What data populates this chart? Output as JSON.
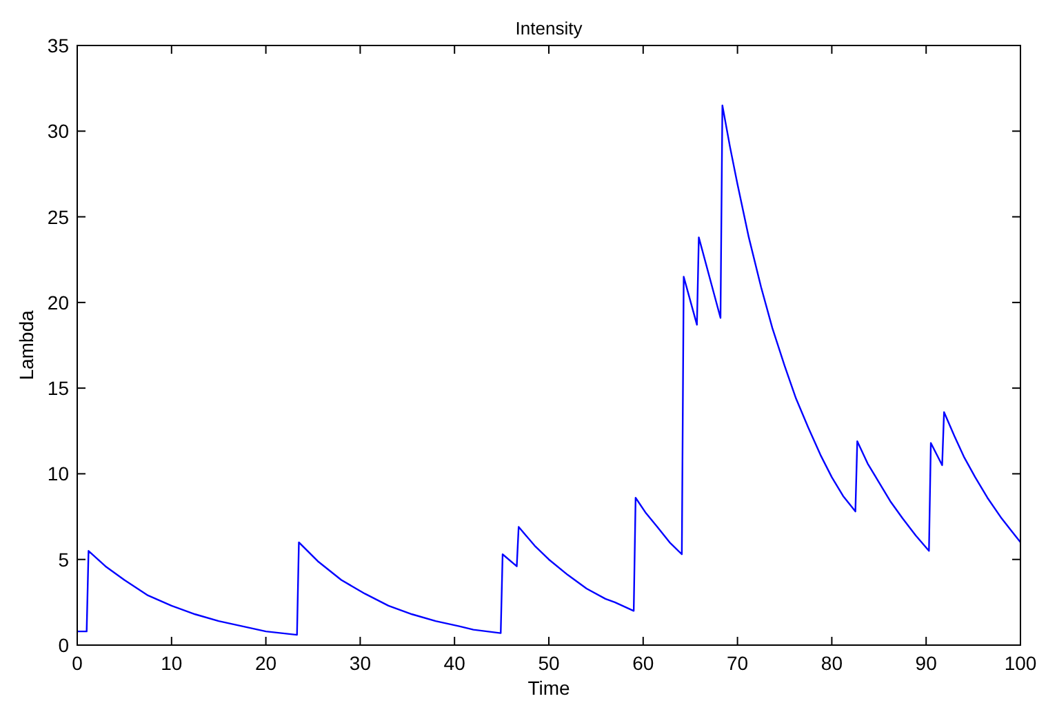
{
  "chart_data": {
    "type": "line",
    "title": "Intensity",
    "xlabel": "Time",
    "ylabel": "Lambda",
    "x": [
      0,
      1.0,
      1.2,
      3,
      5,
      7.5,
      10,
      12.5,
      15,
      17.5,
      20,
      23.3,
      23.5,
      25.5,
      28,
      30.5,
      33,
      35.5,
      38,
      40.5,
      42,
      44.9,
      45.1,
      46.6,
      46.8,
      48.5,
      50,
      52,
      54,
      56,
      57,
      59.0,
      59.2,
      60.3,
      61.5,
      62.8,
      64.1,
      64.3,
      65.7,
      65.9,
      68.2,
      68.4,
      69.2,
      70,
      71.2,
      72.5,
      73.7,
      75,
      76.2,
      77.5,
      78.8,
      80,
      81.2,
      82.5,
      82.7,
      83.8,
      85,
      86.2,
      87.5,
      88.9,
      90.3,
      90.5,
      91.7,
      91.9,
      93,
      94,
      95.2,
      96.5,
      98,
      99,
      100
    ],
    "series": [
      {
        "color": "#0000ff",
        "values": [
          0.8,
          0.8,
          5.5,
          4.6,
          3.8,
          2.9,
          2.3,
          1.8,
          1.4,
          1.1,
          0.8,
          0.6,
          6.0,
          4.9,
          3.8,
          3.0,
          2.3,
          1.8,
          1.4,
          1.1,
          0.9,
          0.7,
          5.3,
          4.6,
          6.9,
          5.8,
          5.0,
          4.1,
          3.3,
          2.7,
          2.5,
          2.0,
          8.6,
          7.7,
          6.9,
          6.0,
          5.3,
          21.5,
          18.7,
          23.8,
          19.1,
          31.5,
          29.1,
          26.9,
          23.8,
          20.9,
          18.5,
          16.3,
          14.4,
          12.7,
          11.1,
          9.8,
          8.7,
          7.8,
          11.9,
          10.6,
          9.5,
          8.4,
          7.4,
          6.4,
          5.5,
          11.8,
          10.5,
          13.6,
          12.2,
          11.0,
          9.8,
          8.6,
          7.4,
          6.7,
          6.0
        ]
      }
    ],
    "xlim": [
      0,
      100
    ],
    "xticks": [
      0,
      10,
      20,
      30,
      40,
      50,
      60,
      70,
      80,
      90,
      100
    ],
    "ylim": [
      0,
      35
    ],
    "yticks": [
      0,
      5,
      10,
      15,
      20,
      25,
      30,
      35
    ],
    "grid": false,
    "marker": "none",
    "line_style": "solid"
  }
}
